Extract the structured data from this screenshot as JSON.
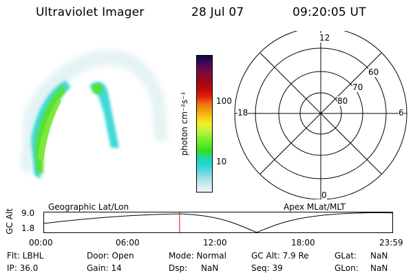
{
  "header": {
    "title": "Ultraviolet Imager",
    "date": "28 Jul 07",
    "time": "09:20:05 UT"
  },
  "colorbar": {
    "unit_label": "photon cm⁻²s⁻¹",
    "ticks": [
      "100",
      "10"
    ],
    "scale": "log",
    "colors": [
      "#0a0a3c",
      "#3a0a5a",
      "#6a0a4a",
      "#8a0a2a",
      "#a00a18",
      "#c00a0a",
      "#e02010",
      "#f06a10",
      "#f09a10",
      "#f8c820",
      "#f0f020",
      "#c8f040",
      "#8af030",
      "#60e828",
      "#30e020",
      "#20d8a0",
      "#20d8d8",
      "#60d8e0",
      "#a0e0e8",
      "#d0ecf0",
      "#f0f4f8"
    ]
  },
  "polar_plot": {
    "lat_labels": [
      "80",
      "70",
      "60"
    ],
    "mlt_labels": {
      "top": "12",
      "right": "6",
      "bottom": "0",
      "left": "18"
    }
  },
  "timeline": {
    "ylabel": "GC Alt",
    "y_ticks": [
      "9.0",
      "1.8"
    ],
    "left_label": "Geographic Lat/Lon",
    "right_label": "Apex  MLat/MLT",
    "x_ticks": [
      "00:00",
      "06:00",
      "12:00",
      "18:00",
      "23:59"
    ],
    "current_time_fraction": 0.389
  },
  "info": {
    "flt": "Flt: LBHL",
    "ip": "IP: 36.0",
    "door": "Door: Open",
    "gain": "Gain: 14",
    "mode": "Mode: Normal",
    "dsp": "Dsp:",
    "dsp_value": "NaN",
    "gc_alt": "GC Alt: 7.9 Re",
    "seq": "Seq: 39",
    "glat": "GLat:",
    "glat_value": "NaN",
    "glon": "GLon:",
    "glon_value": "NaN"
  }
}
